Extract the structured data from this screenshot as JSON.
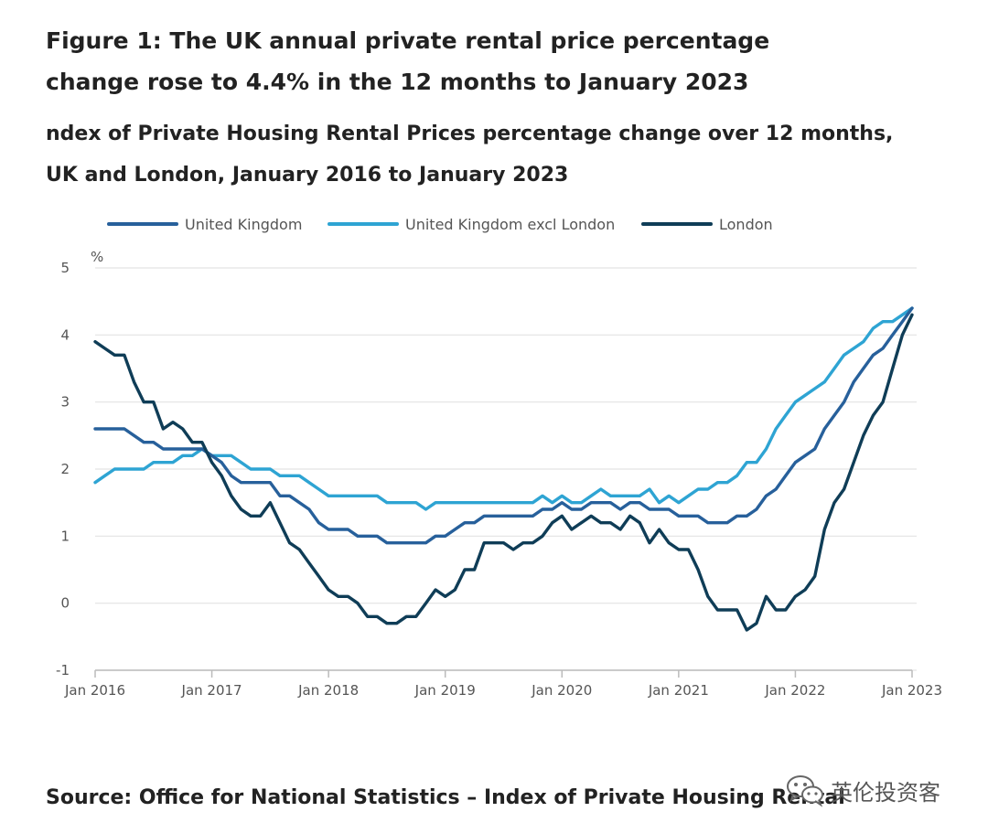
{
  "page": {
    "title": "Figure 1: The UK annual private rental price percentage change rose to 4.4% in the 12 months to January 2023",
    "subtitle": "ndex of Private Housing Rental Prices percentage change over 12 months, UK and London, January 2016 to January 2023",
    "source": "Source: Office for National Statistics – Index of Private Housing Rental",
    "watermark": "英伦投资客",
    "watermark_icon": "wechat-icon"
  },
  "chart_data": {
    "type": "line",
    "title": "Figure 1: The UK annual private rental price percentage change rose to 4.4% in the 12 months to January 2023",
    "subtitle": "ndex of Private Housing Rental Prices percentage change over 12 months, UK and London, January 2016 to January 2023",
    "ylabel": "%",
    "xlabel": "",
    "ylim": [
      -1,
      5
    ],
    "yticks": [
      -1,
      0,
      1,
      2,
      3,
      4,
      5
    ],
    "x_start": "Jan 2016",
    "x_end": "Jan 2023",
    "x_ticks": [
      "Jan 2016",
      "Jan 2017",
      "Jan 2018",
      "Jan 2019",
      "Jan 2020",
      "Jan 2021",
      "Jan 2022",
      "Jan 2023"
    ],
    "grid": true,
    "legend_position": "top",
    "series": [
      {
        "name": "United Kingdom",
        "color": "#27609b",
        "values": [
          2.6,
          2.6,
          2.6,
          2.6,
          2.5,
          2.4,
          2.4,
          2.3,
          2.3,
          2.3,
          2.3,
          2.3,
          2.2,
          2.1,
          1.9,
          1.8,
          1.8,
          1.8,
          1.8,
          1.6,
          1.6,
          1.5,
          1.4,
          1.2,
          1.1,
          1.1,
          1.1,
          1.0,
          1.0,
          1.0,
          0.9,
          0.9,
          0.9,
          0.9,
          0.9,
          1.0,
          1.0,
          1.1,
          1.2,
          1.2,
          1.3,
          1.3,
          1.3,
          1.3,
          1.3,
          1.3,
          1.4,
          1.4,
          1.5,
          1.4,
          1.4,
          1.5,
          1.5,
          1.5,
          1.4,
          1.5,
          1.5,
          1.4,
          1.4,
          1.4,
          1.3,
          1.3,
          1.3,
          1.2,
          1.2,
          1.2,
          1.3,
          1.3,
          1.4,
          1.6,
          1.7,
          1.9,
          2.1,
          2.2,
          2.3,
          2.6,
          2.8,
          3.0,
          3.3,
          3.5,
          3.7,
          3.8,
          4.0,
          4.2,
          4.4
        ]
      },
      {
        "name": "United Kingdom excl London",
        "color": "#2ea4d3",
        "values": [
          1.8,
          1.9,
          2.0,
          2.0,
          2.0,
          2.0,
          2.1,
          2.1,
          2.1,
          2.2,
          2.2,
          2.3,
          2.2,
          2.2,
          2.2,
          2.1,
          2.0,
          2.0,
          2.0,
          1.9,
          1.9,
          1.9,
          1.8,
          1.7,
          1.6,
          1.6,
          1.6,
          1.6,
          1.6,
          1.6,
          1.5,
          1.5,
          1.5,
          1.5,
          1.4,
          1.5,
          1.5,
          1.5,
          1.5,
          1.5,
          1.5,
          1.5,
          1.5,
          1.5,
          1.5,
          1.5,
          1.6,
          1.5,
          1.6,
          1.5,
          1.5,
          1.6,
          1.7,
          1.6,
          1.6,
          1.6,
          1.6,
          1.7,
          1.5,
          1.6,
          1.5,
          1.6,
          1.7,
          1.7,
          1.8,
          1.8,
          1.9,
          2.1,
          2.1,
          2.3,
          2.6,
          2.8,
          3.0,
          3.1,
          3.2,
          3.3,
          3.5,
          3.7,
          3.8,
          3.9,
          4.1,
          4.2,
          4.2,
          4.3,
          4.4
        ]
      },
      {
        "name": "London",
        "color": "#0f3d57",
        "values": [
          3.9,
          3.8,
          3.7,
          3.7,
          3.3,
          3.0,
          3.0,
          2.6,
          2.7,
          2.6,
          2.4,
          2.4,
          2.1,
          1.9,
          1.6,
          1.4,
          1.3,
          1.3,
          1.5,
          1.2,
          0.9,
          0.8,
          0.6,
          0.4,
          0.2,
          0.1,
          0.1,
          0.0,
          -0.2,
          -0.2,
          -0.3,
          -0.3,
          -0.2,
          -0.2,
          0.0,
          0.2,
          0.1,
          0.2,
          0.5,
          0.5,
          0.9,
          0.9,
          0.9,
          0.8,
          0.9,
          0.9,
          1.0,
          1.2,
          1.3,
          1.1,
          1.2,
          1.3,
          1.2,
          1.2,
          1.1,
          1.3,
          1.2,
          0.9,
          1.1,
          0.9,
          0.8,
          0.8,
          0.5,
          0.1,
          -0.1,
          -0.1,
          -0.1,
          -0.4,
          -0.3,
          0.1,
          -0.1,
          -0.1,
          0.1,
          0.2,
          0.4,
          1.1,
          1.5,
          1.7,
          2.1,
          2.5,
          2.8,
          3.0,
          3.5,
          4.0,
          4.3
        ]
      }
    ]
  }
}
